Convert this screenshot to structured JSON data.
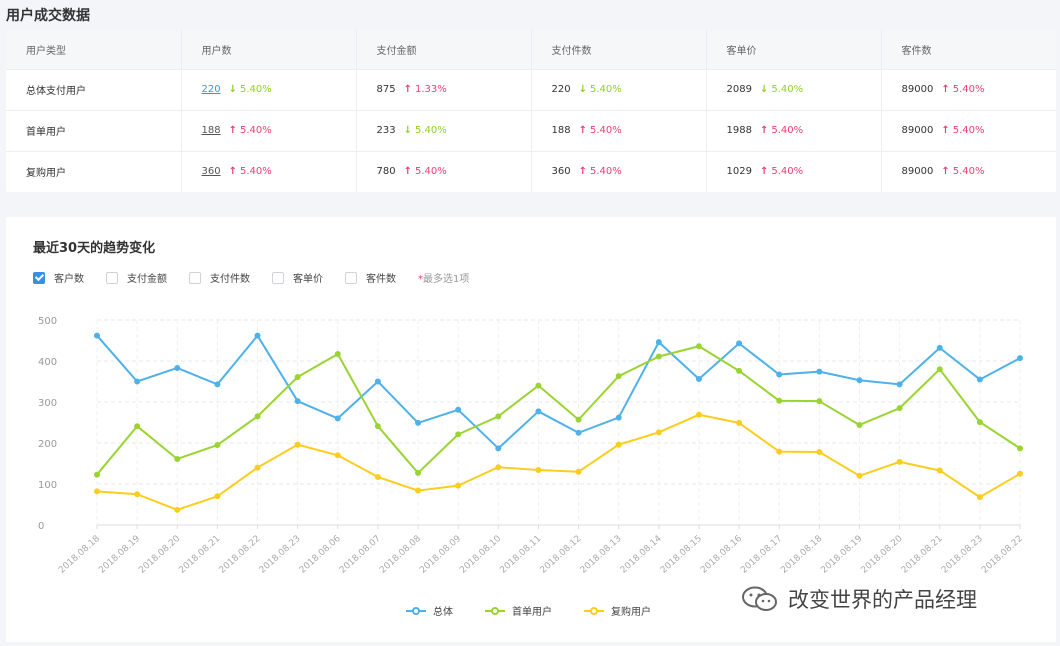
{
  "page": {
    "title": "用户成交数据"
  },
  "table": {
    "headers": [
      "用户类型",
      "用户数",
      "支付金额",
      "支付件数",
      "客单价",
      "客件数"
    ],
    "rows": [
      {
        "type": "总体支付用户",
        "users": {
          "value": "220",
          "dir": "down",
          "pct": "5.40%"
        },
        "amount": {
          "value": "875",
          "dir": "up",
          "pct": "1.33%"
        },
        "items": {
          "value": "220",
          "dir": "down",
          "pct": "5.40%"
        },
        "price": {
          "value": "2089",
          "dir": "down",
          "pct": "5.40%"
        },
        "count": {
          "value": "89000",
          "dir": "up",
          "pct": "5.40%"
        }
      },
      {
        "type": "首单用户",
        "users": {
          "value": "188",
          "dir": "up",
          "pct": "5.40%"
        },
        "amount": {
          "value": "233",
          "dir": "down",
          "pct": "5.40%"
        },
        "items": {
          "value": "188",
          "dir": "up",
          "pct": "5.40%"
        },
        "price": {
          "value": "1988",
          "dir": "up",
          "pct": "5.40%"
        },
        "count": {
          "value": "89000",
          "dir": "up",
          "pct": "5.40%"
        }
      },
      {
        "type": "复购用户",
        "users": {
          "value": "360",
          "dir": "up",
          "pct": "5.40%"
        },
        "amount": {
          "value": "780",
          "dir": "up",
          "pct": "5.40%"
        },
        "items": {
          "value": "360",
          "dir": "up",
          "pct": "5.40%"
        },
        "price": {
          "value": "1029",
          "dir": "up",
          "pct": "5.40%"
        },
        "count": {
          "value": "89000",
          "dir": "up",
          "pct": "5.40%"
        }
      }
    ]
  },
  "trend": {
    "title": "最近30天的趋势变化",
    "filters": [
      {
        "label": "客户数",
        "checked": true
      },
      {
        "label": "支付金额",
        "checked": false
      },
      {
        "label": "支付件数",
        "checked": false
      },
      {
        "label": "客单价",
        "checked": false
      },
      {
        "label": "客件数",
        "checked": false
      }
    ],
    "note_star": "*",
    "note": "最多选1项"
  },
  "chart_data": {
    "type": "line",
    "categories": [
      "2018.08.18",
      "2018.08.19",
      "2018.08.20",
      "2018.08.21",
      "2018.08.22",
      "2018.08.23",
      "2018.08.06",
      "2018.08.07",
      "2018.08.08",
      "2018.08.09",
      "2018.08.10",
      "2018.08.11",
      "2018.08.12",
      "2018.08.13",
      "2018.08.14",
      "2018.08.15",
      "2018.08.16",
      "2018.08.17",
      "2018.08.18",
      "2018.08.19",
      "2018.08.20",
      "2018.08.21",
      "2018.08.23",
      "2018.08.22"
    ],
    "series": [
      {
        "name": "总体",
        "color": "#4eb1e9",
        "values": [
          462,
          350,
          383,
          343,
          462,
          302,
          260,
          350,
          249,
          281,
          187,
          277,
          225,
          262,
          446,
          356,
          443,
          367,
          374,
          353,
          343,
          432,
          355,
          407
        ]
      },
      {
        "name": "首单用户",
        "color": "#9ad431",
        "values": [
          123,
          241,
          161,
          195,
          265,
          361,
          417,
          241,
          127,
          221,
          265,
          340,
          257,
          363,
          411,
          436,
          376,
          303,
          302,
          244,
          285,
          380,
          251,
          187
        ]
      },
      {
        "name": "复购用户",
        "color": "#fbcd1e",
        "values": [
          82,
          75,
          37,
          70,
          140,
          196,
          170,
          117,
          84,
          96,
          141,
          134,
          130,
          196,
          226,
          269,
          249,
          179,
          178,
          120,
          154,
          133,
          68,
          125
        ]
      }
    ],
    "ylim": [
      0,
      500
    ],
    "yticks": [
      0,
      100,
      200,
      300,
      400,
      500
    ],
    "grid": true,
    "legend_position": "bottom"
  },
  "watermark": {
    "text": "改变世界的产品经理",
    "icon": "wechat-icon"
  }
}
